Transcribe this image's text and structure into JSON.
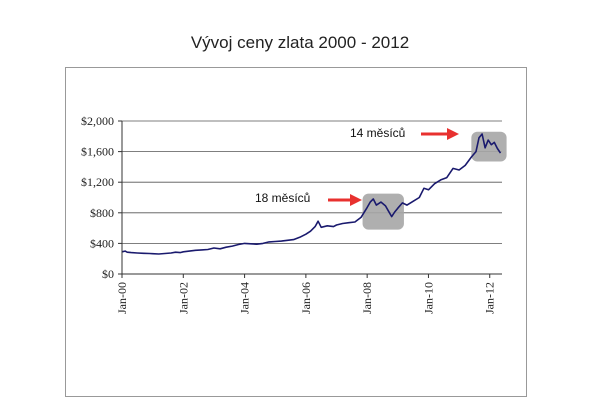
{
  "chart_data": {
    "type": "line",
    "title": "Vývoj ceny zlata 2000 - 2012",
    "xlabel": "",
    "ylabel": "",
    "ylim": [
      0,
      2000
    ],
    "yticks": [
      "$0",
      "$400",
      "$800",
      "$1,200",
      "$1,600",
      "$2,000"
    ],
    "ytick_values": [
      0,
      400,
      800,
      1200,
      1600,
      2000
    ],
    "xlim": [
      2000.0,
      2012.4
    ],
    "xticks": [
      "Jan-00",
      "Jan-02",
      "Jan-04",
      "Jan-06",
      "Jan-08",
      "Jan-10",
      "Jan-12"
    ],
    "xtick_values": [
      2000,
      2002,
      2004,
      2006,
      2008,
      2010,
      2012
    ],
    "grid": true,
    "colors": {
      "line": "#1a1a6e",
      "highlight": "#a6a6a6",
      "arrow": "#e8312f"
    },
    "series": [
      {
        "x": [
          2000.0,
          2000.1,
          2000.17,
          2000.3,
          2000.5,
          2000.7,
          2000.9,
          2001.0,
          2001.2,
          2001.4,
          2001.6,
          2001.75,
          2001.9,
          2002.0,
          2002.2,
          2002.4,
          2002.6,
          2002.8,
          2003.0,
          2003.2,
          2003.4,
          2003.6,
          2003.8,
          2004.0,
          2004.2,
          2004.4,
          2004.6,
          2004.8,
          2005.0,
          2005.2,
          2005.4,
          2005.6,
          2005.8,
          2006.0,
          2006.15,
          2006.3,
          2006.4,
          2006.5,
          2006.7,
          2006.9,
          2007.0,
          2007.2,
          2007.4,
          2007.6,
          2007.8,
          2008.0,
          2008.1,
          2008.2,
          2008.3,
          2008.45,
          2008.6,
          2008.7,
          2008.8,
          2008.9,
          2009.0,
          2009.15,
          2009.3,
          2009.5,
          2009.7,
          2009.85,
          2010.0,
          2010.2,
          2010.4,
          2010.6,
          2010.8,
          2011.0,
          2011.2,
          2011.4,
          2011.55,
          2011.65,
          2011.75,
          2011.85,
          2011.95,
          2012.05,
          2012.15,
          2012.25,
          2012.35
        ],
        "values": [
          290,
          300,
          285,
          280,
          275,
          270,
          268,
          265,
          262,
          268,
          275,
          285,
          280,
          290,
          300,
          310,
          315,
          320,
          340,
          330,
          350,
          365,
          385,
          400,
          395,
          390,
          400,
          420,
          425,
          430,
          440,
          450,
          480,
          520,
          560,
          620,
          690,
          610,
          630,
          620,
          640,
          660,
          670,
          680,
          740,
          870,
          940,
          980,
          900,
          940,
          890,
          820,
          750,
          810,
          860,
          930,
          900,
          950,
          1000,
          1120,
          1100,
          1180,
          1230,
          1260,
          1380,
          1360,
          1420,
          1530,
          1600,
          1780,
          1830,
          1650,
          1750,
          1690,
          1720,
          1640,
          1580
        ]
      }
    ],
    "annotations": [
      "18 měsíců",
      "14 měsíců"
    ],
    "highlights": [
      {
        "x": [
          2007.85,
          2009.2
        ],
        "y": [
          580,
          1050
        ]
      },
      {
        "x": [
          2011.4,
          2012.55
        ],
        "y": [
          1470,
          1860
        ]
      }
    ]
  }
}
